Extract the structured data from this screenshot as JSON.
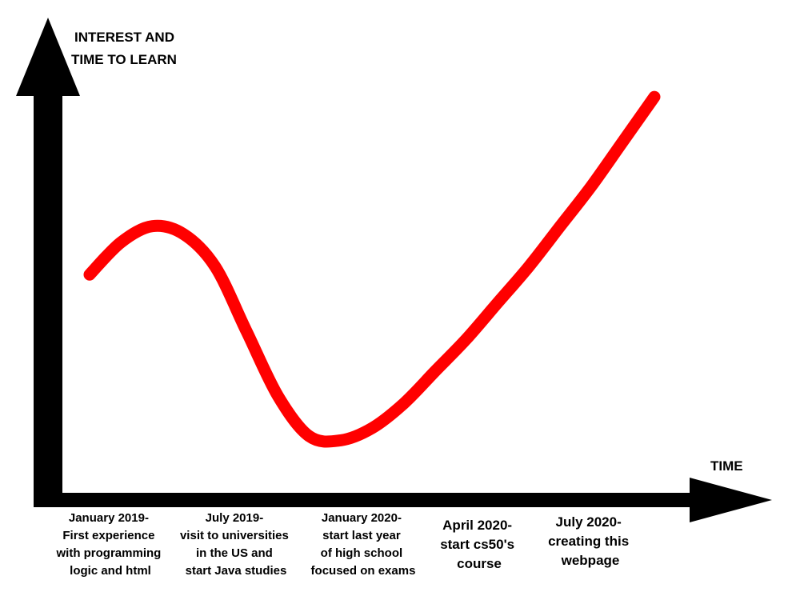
{
  "chart_data": {
    "type": "line",
    "ylabel_lines": [
      "INTEREST AND",
      "TIME TO LEARN"
    ],
    "xlabel": "TIME",
    "x_ticks": [
      {
        "lines": [
          "January 2019-",
          "First experience",
          "with programming",
          "logic and html"
        ]
      },
      {
        "lines": [
          "July 2019-",
          "visit to universities",
          "in the US and",
          "start Java studies"
        ]
      },
      {
        "lines": [
          "January 2020-",
          "start last year",
          "of high school",
          "focused on exams"
        ]
      },
      {
        "lines": [
          "April 2020-",
          "start cs50's",
          "course"
        ]
      },
      {
        "lines": [
          "July 2020-",
          "creating this",
          "webpage"
        ]
      }
    ],
    "x": [
      0,
      1,
      2,
      3,
      4,
      5,
      6,
      7,
      8,
      9,
      10,
      11,
      12,
      13,
      14,
      15,
      16,
      17,
      18
    ],
    "values": [
      0.54,
      0.62,
      0.66,
      0.64,
      0.56,
      0.4,
      0.24,
      0.14,
      0.13,
      0.16,
      0.22,
      0.3,
      0.38,
      0.47,
      0.56,
      0.66,
      0.76,
      0.87,
      0.98
    ],
    "ylim": [
      0,
      1.2
    ],
    "xlim": [
      0,
      18
    ],
    "grid": false,
    "line_color": "#ff0000",
    "axis_color": "#000000"
  }
}
